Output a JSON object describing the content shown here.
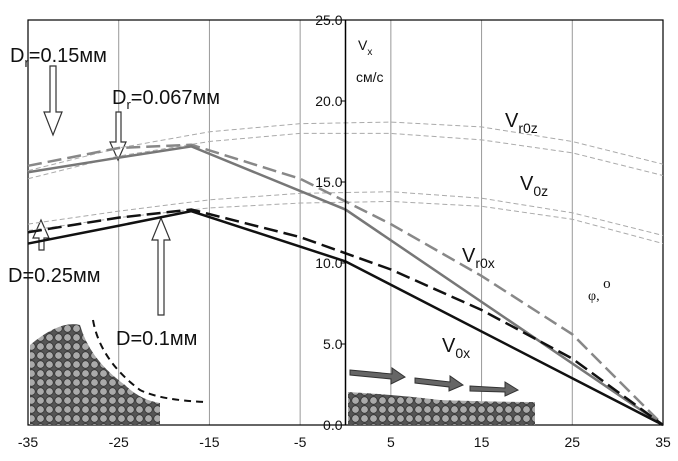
{
  "chart_data": {
    "type": "line",
    "y_label": {
      "text": "V",
      "sub": "x",
      "unit": "см/с"
    },
    "xlim": [
      -35,
      35
    ],
    "xticks": [
      -35,
      -25,
      -15,
      -5,
      5,
      15,
      25,
      35
    ],
    "ylim": [
      0,
      25
    ],
    "yticks": [
      {
        "value": 0,
        "label": "0.0"
      },
      {
        "value": 5,
        "label": "5.0"
      },
      {
        "value": 10,
        "label": "10.0"
      },
      {
        "value": 15,
        "label": "15.0"
      },
      {
        "value": 20,
        "label": "20.0"
      },
      {
        "value": 25,
        "label": "25.0"
      }
    ],
    "grid": true,
    "series": [
      {
        "color": "#aaaaaa",
        "dash": true,
        "width": 1,
        "x": [
          -35,
          -25,
          -15,
          -5,
          5,
          15,
          25,
          35
        ],
        "values": [
          15.7,
          17.1,
          18.1,
          18.6,
          18.7,
          18.4,
          17.5,
          16.1
        ]
      },
      {
        "color": "#aaaaaa",
        "dash": true,
        "width": 1,
        "x": [
          -35,
          -25,
          -15,
          -5,
          5,
          15,
          25,
          35
        ],
        "values": [
          15.2,
          16.6,
          17.5,
          18.0,
          18.0,
          17.6,
          16.8,
          15.4
        ]
      },
      {
        "color": "#aaaaaa",
        "dash": true,
        "width": 1,
        "x": [
          -35,
          -25,
          -15,
          -5,
          5,
          15,
          25,
          35
        ],
        "values": [
          12.4,
          13.2,
          13.9,
          14.3,
          14.4,
          14.0,
          13.1,
          11.7
        ]
      },
      {
        "color": "#aaaaaa",
        "dash": true,
        "width": 1,
        "x": [
          -35,
          -25,
          -15,
          -5,
          5,
          15,
          25,
          35
        ],
        "values": [
          12.0,
          12.8,
          13.4,
          13.7,
          13.8,
          13.5,
          12.7,
          11.2
        ]
      },
      {
        "color": "#888888",
        "dash": true,
        "width": 2.5,
        "x": [
          -35,
          -25,
          -17,
          -5,
          5,
          15,
          25,
          35
        ],
        "values": [
          16.0,
          17.1,
          17.3,
          15.2,
          12.4,
          9.2,
          5.6,
          0
        ]
      },
      {
        "color": "#777777",
        "dash": false,
        "width": 2.5,
        "x": [
          -35,
          -25,
          -17,
          0,
          35
        ],
        "values": [
          15.6,
          16.5,
          17.2,
          13.3,
          0
        ]
      },
      {
        "color": "#111111",
        "dash": true,
        "width": 2.5,
        "x": [
          -35,
          -25,
          -17,
          -5,
          5,
          15,
          25,
          35
        ],
        "values": [
          11.9,
          12.8,
          13.3,
          11.6,
          9.6,
          7.1,
          4.1,
          0
        ]
      },
      {
        "color": "#111111",
        "dash": false,
        "width": 2.5,
        "x": [
          -35,
          -25,
          -17,
          0,
          35
        ],
        "values": [
          11.2,
          12.3,
          13.2,
          10.1,
          0
        ]
      }
    ],
    "annotations": [
      {
        "text": "D",
        "sub": "r",
        "after": "=0.15мм"
      },
      {
        "text": "D",
        "sub": "r",
        "after": "=0.067мм"
      },
      {
        "text": "D=0.25мм"
      },
      {
        "text": "D=0.1мм"
      },
      {
        "text": "V",
        "sub": "r0z"
      },
      {
        "text": "V",
        "sub": "0z"
      },
      {
        "text": "V",
        "sub": "r0x"
      },
      {
        "text": "V",
        "sub": "0x"
      },
      {
        "text": "φ, ",
        "sup": "o"
      }
    ]
  }
}
